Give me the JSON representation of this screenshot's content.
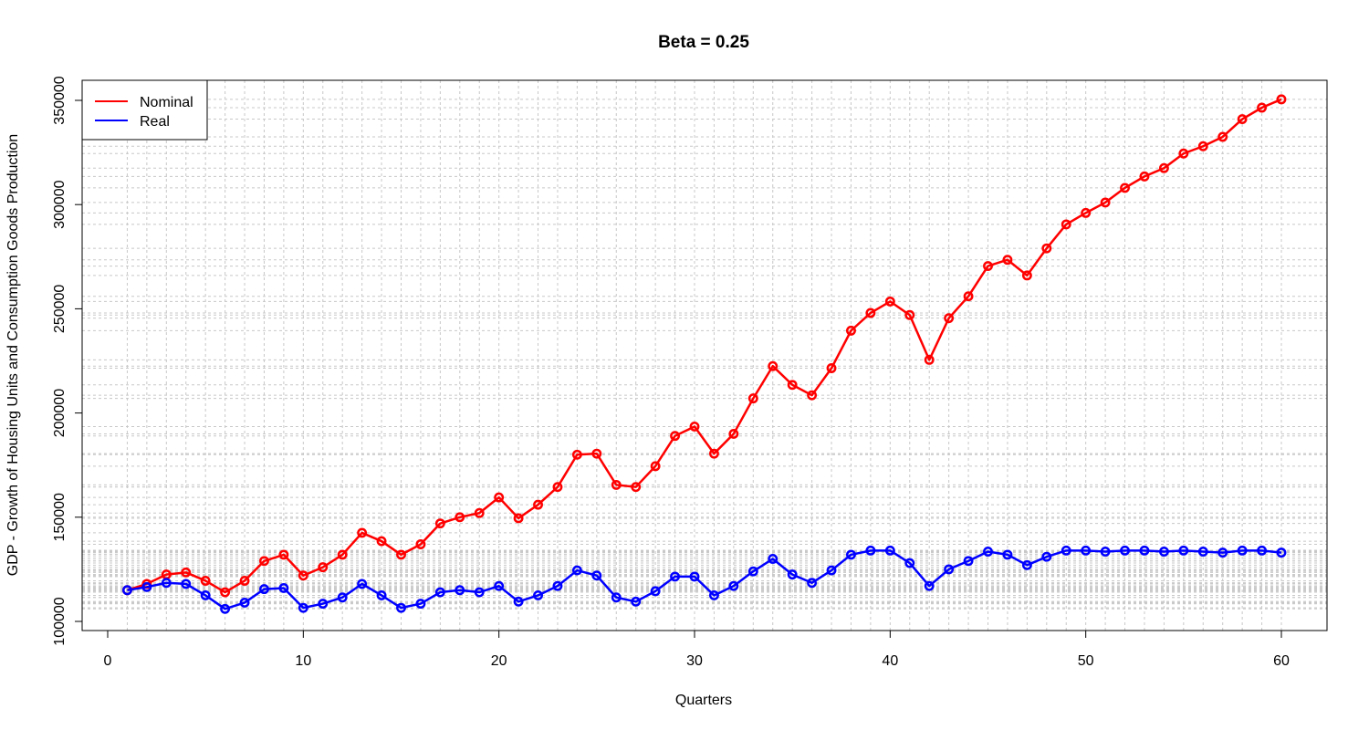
{
  "chart_data": {
    "type": "line",
    "title": "Beta = 0.25",
    "xlabel": "Quarters",
    "ylabel": "GDP - Growth of Housing Units and Consumption Goods Production",
    "xlim": [
      0,
      62
    ],
    "ylim": [
      100000,
      355000
    ],
    "x_ticks": [
      0,
      10,
      20,
      30,
      40,
      50,
      60
    ],
    "y_ticks": [
      100000,
      150000,
      200000,
      250000,
      300000,
      350000
    ],
    "x_tick_labels": [
      "0",
      "10",
      "20",
      "30",
      "40",
      "50",
      "60"
    ],
    "y_tick_labels": [
      "100000",
      "150000",
      "200000",
      "250000",
      "300000",
      "350000"
    ],
    "grid": true,
    "legend_position": "top-left",
    "x": [
      1,
      2,
      3,
      4,
      5,
      6,
      7,
      8,
      9,
      10,
      11,
      12,
      13,
      14,
      15,
      16,
      17,
      18,
      19,
      20,
      21,
      22,
      23,
      24,
      25,
      26,
      27,
      28,
      29,
      30,
      31,
      32,
      33,
      34,
      35,
      36,
      37,
      38,
      39,
      40,
      41,
      42,
      43,
      44,
      45,
      46,
      47,
      48,
      49,
      50,
      51,
      52,
      53,
      54,
      55,
      56,
      57,
      58,
      59,
      60
    ],
    "series": [
      {
        "name": "Nominal",
        "color": "#ff0000",
        "values": [
          115000,
          118000,
          122500,
          123500,
          119500,
          114000,
          119500,
          129000,
          132000,
          122000,
          126000,
          132000,
          142500,
          138500,
          132000,
          137000,
          147000,
          150000,
          152000,
          159500,
          149500,
          156000,
          164500,
          180000,
          180500,
          165500,
          164500,
          174500,
          189000,
          193500,
          180500,
          190000,
          207000,
          222500,
          213500,
          208500,
          221500,
          239500,
          248000,
          253500,
          247000,
          225500,
          245500,
          256000,
          270500,
          273500,
          266000,
          279000,
          290500,
          296000,
          301000,
          308000,
          313500,
          317500,
          324500,
          328000,
          332500,
          341000,
          346500,
          350500
        ]
      },
      {
        "name": "Real",
        "color": "#0000ff",
        "values": [
          115000,
          116500,
          118500,
          118000,
          112500,
          106000,
          109000,
          115500,
          116000,
          106500,
          108500,
          111500,
          118000,
          112500,
          106500,
          108500,
          114000,
          115000,
          114000,
          117000,
          109500,
          112500,
          117000,
          124500,
          122000,
          111500,
          109500,
          114500,
          121500,
          121500,
          112500,
          117000,
          124000,
          130000,
          122500,
          118500,
          124500,
          132000,
          134000,
          134000,
          128000,
          117000,
          125000,
          129000,
          133500,
          132000,
          127000,
          131000,
          134000,
          134000,
          133500,
          134000,
          134000,
          133500,
          134000,
          133500,
          133000,
          134000,
          134000,
          133000
        ]
      }
    ]
  }
}
